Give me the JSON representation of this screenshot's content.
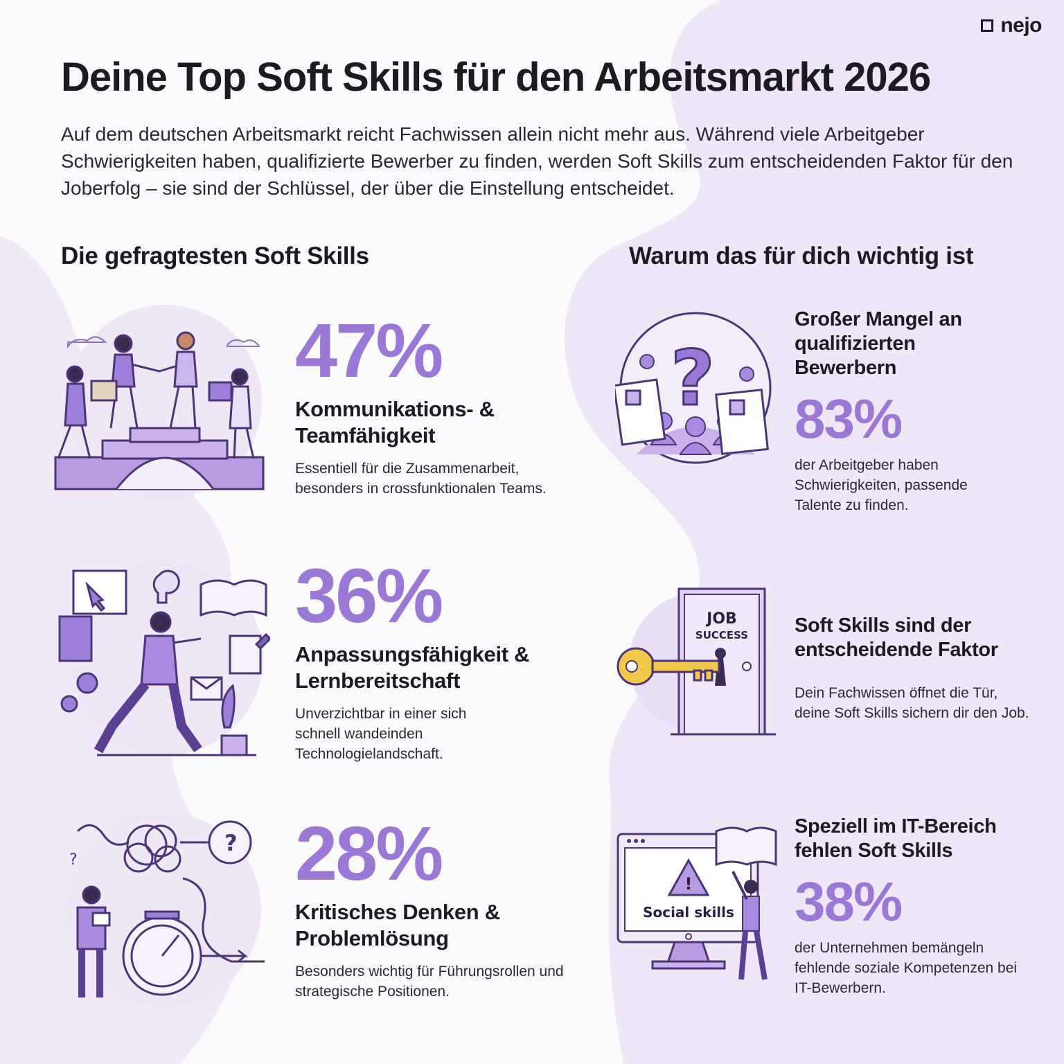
{
  "brand": {
    "name": "nejo"
  },
  "title": "Deine Top Soft Skills für den Arbeitsmarkt 2026",
  "intro": "Auf dem deutschen Arbeitsmarkt reicht Fachwissen allein nicht mehr aus. Während viele Arbeitgeber Schwierigkeiten haben, qualifizierte Bewerber zu finden, werden Soft Skills zum entscheidenden Faktor für den Joberfolg – sie sind der Schlüssel, der über die Einstellung entscheidet.",
  "left_column": {
    "heading": "Die gefragtesten Soft Skills",
    "items": [
      {
        "percent": "47%",
        "value": 47,
        "title": "Kommunikations- & Teamfähigkeit",
        "description": "Essentiell für die Zusammenarbeit, besonders in crossfunktionalen Teams.",
        "icon": "team-bridge-illustration"
      },
      {
        "percent": "36%",
        "value": 36,
        "title": "Anpassungsfähigkeit & Lernbereitschaft",
        "description": "Unverzichtbar in einer sich schnell wandeinden Technologielandschaft.",
        "icon": "learning-person-illustration"
      },
      {
        "percent": "28%",
        "value": 28,
        "title": "Kritisches Denken & Problemlösung",
        "description": "Besonders wichtig für Führungsrollen und strategische Positionen.",
        "icon": "problem-solving-illustration"
      }
    ]
  },
  "right_column": {
    "heading": "Warum das für dich wichtig ist",
    "items": [
      {
        "title": "Großer Mangel an qualifizierten Bewerbern",
        "percent": "83%",
        "value": 83,
        "text": "der Arbeitgeber haben Schwierigkeiten, passende Talente zu finden.",
        "icon": "candidate-question-illustration"
      },
      {
        "title": "Soft Skills sind der entscheidende Faktor",
        "percent": "",
        "text": "Dein Fachwissen öffnet die Tür, deine Soft Skills sichern dir den Job.",
        "icon": "key-door-illustration",
        "door_label_top": "JOB",
        "door_label_bottom": "SUCCESS"
      },
      {
        "title": "Speziell im IT-Bereich fehlen Soft Skills",
        "percent": "38%",
        "value": 38,
        "text": "der Unternehmen bemängeln fehlende soziale Kompetenzen bei IT-Bewerbern.",
        "icon": "monitor-warning-illustration",
        "screen_label": "Social skills"
      }
    ]
  },
  "colors": {
    "accent": "#9b78d6",
    "dark_purple": "#5a3f94",
    "light_purple": "#e9def7",
    "key_yellow": "#f2c84b"
  }
}
